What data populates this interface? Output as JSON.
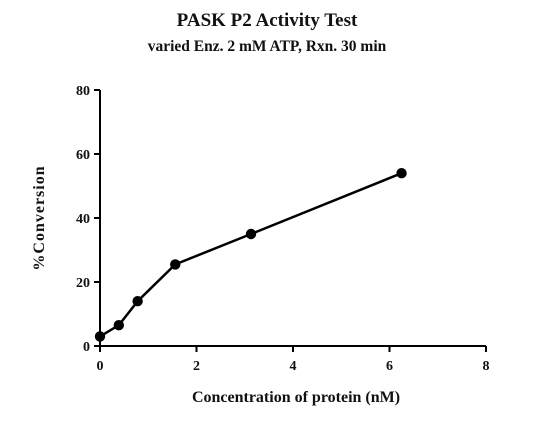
{
  "chart_data": {
    "type": "line",
    "title": "PASK P2 Activity Test",
    "subtitle": "varied Enz. 2 mM ATP, Rxn. 30 min",
    "xlabel": "Concentration of protein (nM)",
    "ylabel": "%Conversion",
    "xlim": [
      0,
      8
    ],
    "ylim": [
      0,
      80
    ],
    "x_ticks": [
      0,
      2,
      4,
      6,
      8
    ],
    "y_ticks": [
      0,
      20,
      40,
      60,
      80
    ],
    "grid": false,
    "legend": "none",
    "series": [
      {
        "color": "#000000",
        "marker": "circle",
        "points": [
          {
            "x": 0,
            "y": 3
          },
          {
            "x": 0.39,
            "y": 6.5
          },
          {
            "x": 0.78,
            "y": 14
          },
          {
            "x": 1.56,
            "y": 25.5
          },
          {
            "x": 3.13,
            "y": 35
          },
          {
            "x": 6.25,
            "y": 54
          }
        ]
      }
    ]
  }
}
